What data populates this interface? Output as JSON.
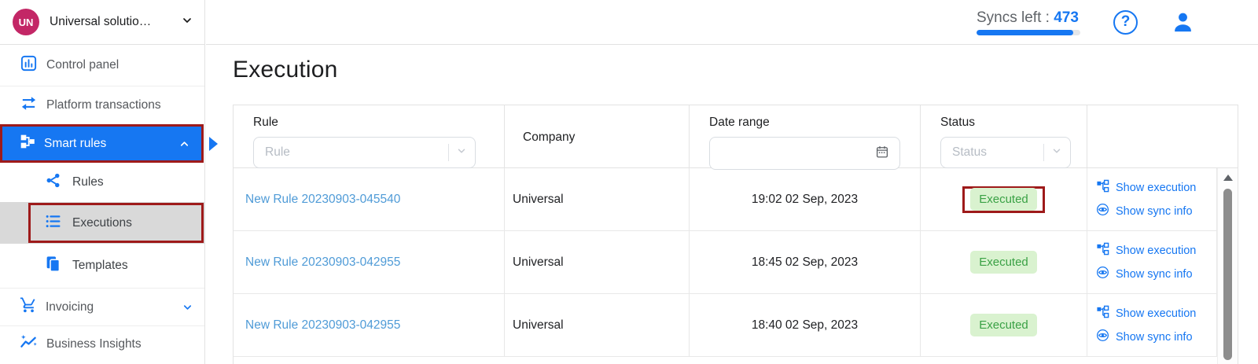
{
  "colors": {
    "primary_blue": "#1677f2",
    "link_blue": "#4f9bd7",
    "badge_bg": "#d9f2cf",
    "badge_text": "#3aa145",
    "annotation_red": "#9e1a1a",
    "selected_row_gray": "#d9d9d9"
  },
  "account": {
    "initials": "UN",
    "name": "Universal solutio…"
  },
  "topbar": {
    "syncs_label": "Syncs left :",
    "syncs_value": "473",
    "progress_pct": 93
  },
  "sidebar": {
    "items": {
      "control_panel": "Control panel",
      "platform_transactions": "Platform transactions",
      "smart_rules": "Smart rules",
      "rules": "Rules",
      "executions": "Executions",
      "templates": "Templates",
      "invoicing": "Invoicing",
      "business_insights": "Business Insights"
    }
  },
  "main": {
    "title": "Execution"
  },
  "table": {
    "headers": {
      "rule": "Rule",
      "company": "Company",
      "date_range": "Date range",
      "status": "Status"
    },
    "filters": {
      "rule_placeholder": "Rule",
      "status_placeholder": "Status"
    },
    "actions": {
      "show_execution": "Show execution",
      "show_sync_info": "Show sync info"
    },
    "rows": [
      {
        "rule": "New Rule 20230903-045540",
        "company": "Universal",
        "date": "19:02 02 Sep, 2023",
        "status": "Executed"
      },
      {
        "rule": "New Rule 20230903-042955",
        "company": "Universal",
        "date": "18:45 02 Sep, 2023",
        "status": "Executed"
      },
      {
        "rule": "New Rule 20230903-042955",
        "company": "Universal",
        "date": "18:40 02 Sep, 2023",
        "status": "Executed"
      }
    ]
  }
}
